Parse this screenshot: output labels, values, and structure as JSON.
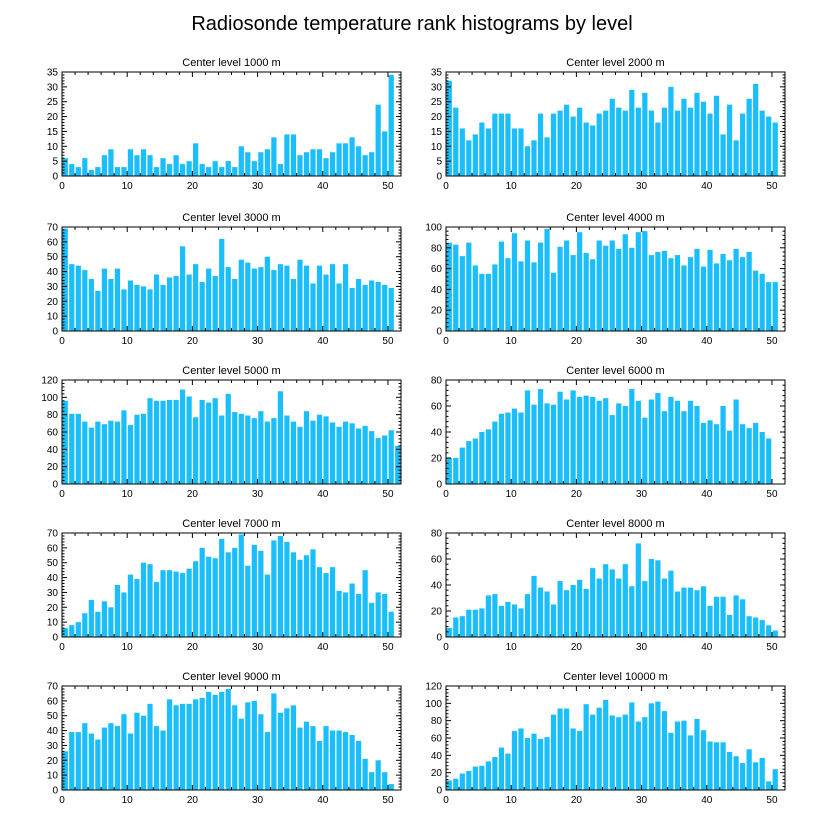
{
  "title": "Radiosonde temperature rank histograms by level",
  "colors": {
    "bar": "#1ABEFA",
    "axis": "#000000"
  },
  "chart_data": [
    {
      "type": "bar",
      "title": "Center level 1000 m",
      "xlim": [
        0,
        52
      ],
      "ylim": [
        0,
        35
      ],
      "yticks": [
        0,
        5,
        10,
        15,
        20,
        25,
        30,
        35
      ],
      "xticks": [
        0,
        10,
        20,
        30,
        40,
        50
      ],
      "values": [
        6,
        4,
        3,
        6,
        2,
        3,
        7,
        9,
        3,
        3,
        9,
        7,
        9,
        7,
        3,
        6,
        4,
        7,
        4,
        5,
        11,
        4,
        3,
        5,
        3,
        5,
        3,
        10,
        8,
        5,
        8,
        9,
        13,
        4,
        14,
        14,
        7,
        8,
        9,
        9,
        6,
        8,
        11,
        11,
        13,
        10,
        7,
        8,
        24,
        15,
        34
      ]
    },
    {
      "type": "bar",
      "title": "Center level 2000 m",
      "xlim": [
        0,
        52
      ],
      "ylim": [
        0,
        35
      ],
      "yticks": [
        0,
        5,
        10,
        15,
        20,
        25,
        30,
        35
      ],
      "xticks": [
        0,
        10,
        20,
        30,
        40,
        50
      ],
      "values": [
        32,
        23,
        16,
        12,
        14,
        18,
        16,
        21,
        21,
        21,
        16,
        16,
        10,
        12,
        21,
        13,
        21,
        22,
        24,
        20,
        23,
        18,
        17,
        21,
        22,
        26,
        23,
        22,
        29,
        23,
        28,
        22,
        18,
        23,
        30,
        22,
        26,
        23,
        28,
        25,
        21,
        27,
        14,
        24,
        12,
        21,
        26,
        31,
        22,
        20,
        18
      ]
    },
    {
      "type": "bar",
      "title": "Center level 3000 m",
      "xlim": [
        0,
        52
      ],
      "ylim": [
        0,
        70
      ],
      "yticks": [
        0,
        10,
        20,
        30,
        40,
        50,
        60,
        70
      ],
      "xticks": [
        0,
        10,
        20,
        30,
        40,
        50
      ],
      "values": [
        69,
        45,
        44,
        41,
        35,
        27,
        42,
        35,
        42,
        28,
        34,
        31,
        30,
        28,
        38,
        31,
        36,
        37,
        57,
        38,
        45,
        33,
        42,
        37,
        62,
        43,
        35,
        48,
        46,
        42,
        43,
        50,
        41,
        45,
        44,
        35,
        48,
        44,
        32,
        44,
        38,
        45,
        32,
        45,
        29,
        35,
        31,
        34,
        33,
        31,
        29
      ]
    },
    {
      "type": "bar",
      "title": "Center level 4000 m",
      "xlim": [
        0,
        52
      ],
      "ylim": [
        0,
        100
      ],
      "yticks": [
        0,
        20,
        40,
        60,
        80,
        100
      ],
      "xticks": [
        0,
        10,
        20,
        30,
        40,
        50
      ],
      "values": [
        85,
        83,
        72,
        85,
        63,
        55,
        55,
        64,
        86,
        70,
        94,
        67,
        87,
        66,
        85,
        98,
        56,
        81,
        87,
        73,
        95,
        75,
        69,
        87,
        82,
        87,
        79,
        93,
        80,
        95,
        96,
        73,
        76,
        77,
        70,
        73,
        63,
        71,
        79,
        62,
        78,
        65,
        74,
        68,
        79,
        71,
        76,
        58,
        55,
        47,
        47
      ]
    },
    {
      "type": "bar",
      "title": "Center level 5000 m",
      "xlim": [
        0,
        52
      ],
      "ylim": [
        0,
        120
      ],
      "yticks": [
        0,
        20,
        40,
        60,
        80,
        100,
        120
      ],
      "xticks": [
        0,
        10,
        20,
        30,
        40,
        50
      ],
      "values": [
        96,
        81,
        81,
        72,
        65,
        72,
        69,
        73,
        72,
        85,
        68,
        80,
        81,
        99,
        96,
        96,
        97,
        97,
        109,
        101,
        77,
        97,
        94,
        99,
        79,
        104,
        83,
        81,
        79,
        76,
        84,
        72,
        76,
        107,
        79,
        72,
        66,
        84,
        73,
        80,
        78,
        71,
        66,
        72,
        70,
        64,
        67,
        61,
        53,
        56,
        62,
        44
      ]
    },
    {
      "type": "bar",
      "title": "Center level 6000 m",
      "xlim": [
        0,
        52
      ],
      "ylim": [
        0,
        80
      ],
      "yticks": [
        0,
        20,
        40,
        60,
        80
      ],
      "xticks": [
        0,
        10,
        20,
        30,
        40,
        50
      ],
      "values": [
        20,
        20,
        28,
        33,
        35,
        40,
        42,
        48,
        54,
        55,
        58,
        55,
        72,
        61,
        73,
        62,
        61,
        71,
        65,
        72,
        67,
        68,
        67,
        64,
        66,
        53,
        62,
        60,
        73,
        64,
        51,
        65,
        70,
        56,
        67,
        64,
        56,
        64,
        60,
        47,
        49,
        46,
        60,
        41,
        65,
        46,
        43,
        47,
        40,
        35
      ]
    },
    {
      "type": "bar",
      "title": "Center level 7000 m",
      "xlim": [
        0,
        52
      ],
      "ylim": [
        0,
        70
      ],
      "yticks": [
        0,
        10,
        20,
        30,
        40,
        50,
        60,
        70
      ],
      "xticks": [
        0,
        10,
        20,
        30,
        40,
        50
      ],
      "values": [
        6,
        8,
        10,
        16,
        25,
        17,
        24,
        20,
        35,
        30,
        42,
        39,
        50,
        49,
        37,
        45,
        45,
        44,
        43,
        46,
        51,
        60,
        54,
        53,
        66,
        57,
        60,
        69,
        48,
        62,
        58,
        42,
        65,
        68,
        64,
        57,
        52,
        55,
        59,
        47,
        43,
        47,
        31,
        30,
        36,
        29,
        45,
        23,
        30,
        29,
        17
      ]
    },
    {
      "type": "bar",
      "title": "Center level 8000 m",
      "xlim": [
        0,
        52
      ],
      "ylim": [
        0,
        80
      ],
      "yticks": [
        0,
        20,
        40,
        60,
        80
      ],
      "xticks": [
        0,
        10,
        20,
        30,
        40,
        50
      ],
      "values": [
        7,
        15,
        16,
        21,
        21,
        22,
        32,
        33,
        24,
        27,
        25,
        22,
        33,
        47,
        38,
        35,
        25,
        43,
        36,
        40,
        44,
        37,
        53,
        45,
        56,
        52,
        45,
        56,
        39,
        72,
        43,
        60,
        59,
        45,
        51,
        35,
        38,
        38,
        36,
        39,
        24,
        31,
        31,
        17,
        32,
        29,
        16,
        15,
        13,
        9,
        5
      ]
    },
    {
      "type": "bar",
      "title": "Center level 9000 m",
      "xlim": [
        0,
        52
      ],
      "ylim": [
        0,
        70
      ],
      "yticks": [
        0,
        10,
        20,
        30,
        40,
        50,
        60,
        70
      ],
      "xticks": [
        0,
        10,
        20,
        30,
        40,
        50
      ],
      "values": [
        26,
        39,
        39,
        45,
        38,
        34,
        42,
        45,
        43,
        51,
        38,
        52,
        50,
        58,
        43,
        40,
        61,
        57,
        58,
        58,
        61,
        62,
        66,
        64,
        66,
        68,
        57,
        48,
        59,
        60,
        51,
        39,
        65,
        52,
        55,
        57,
        42,
        46,
        43,
        33,
        43,
        40,
        40,
        39,
        37,
        33,
        21,
        12,
        20,
        12,
        4
      ]
    },
    {
      "type": "bar",
      "title": "Center level 10000 m",
      "xlim": [
        0,
        52
      ],
      "ylim": [
        0,
        120
      ],
      "yticks": [
        0,
        20,
        40,
        60,
        80,
        100,
        120
      ],
      "xticks": [
        0,
        10,
        20,
        30,
        40,
        50
      ],
      "values": [
        11,
        13,
        19,
        22,
        27,
        28,
        33,
        38,
        49,
        42,
        68,
        71,
        60,
        65,
        59,
        61,
        87,
        94,
        94,
        71,
        68,
        99,
        87,
        95,
        104,
        86,
        84,
        87,
        101,
        79,
        84,
        100,
        102,
        91,
        66,
        79,
        80,
        63,
        82,
        69,
        56,
        55,
        55,
        44,
        39,
        31,
        47,
        32,
        37,
        10,
        24
      ]
    }
  ]
}
